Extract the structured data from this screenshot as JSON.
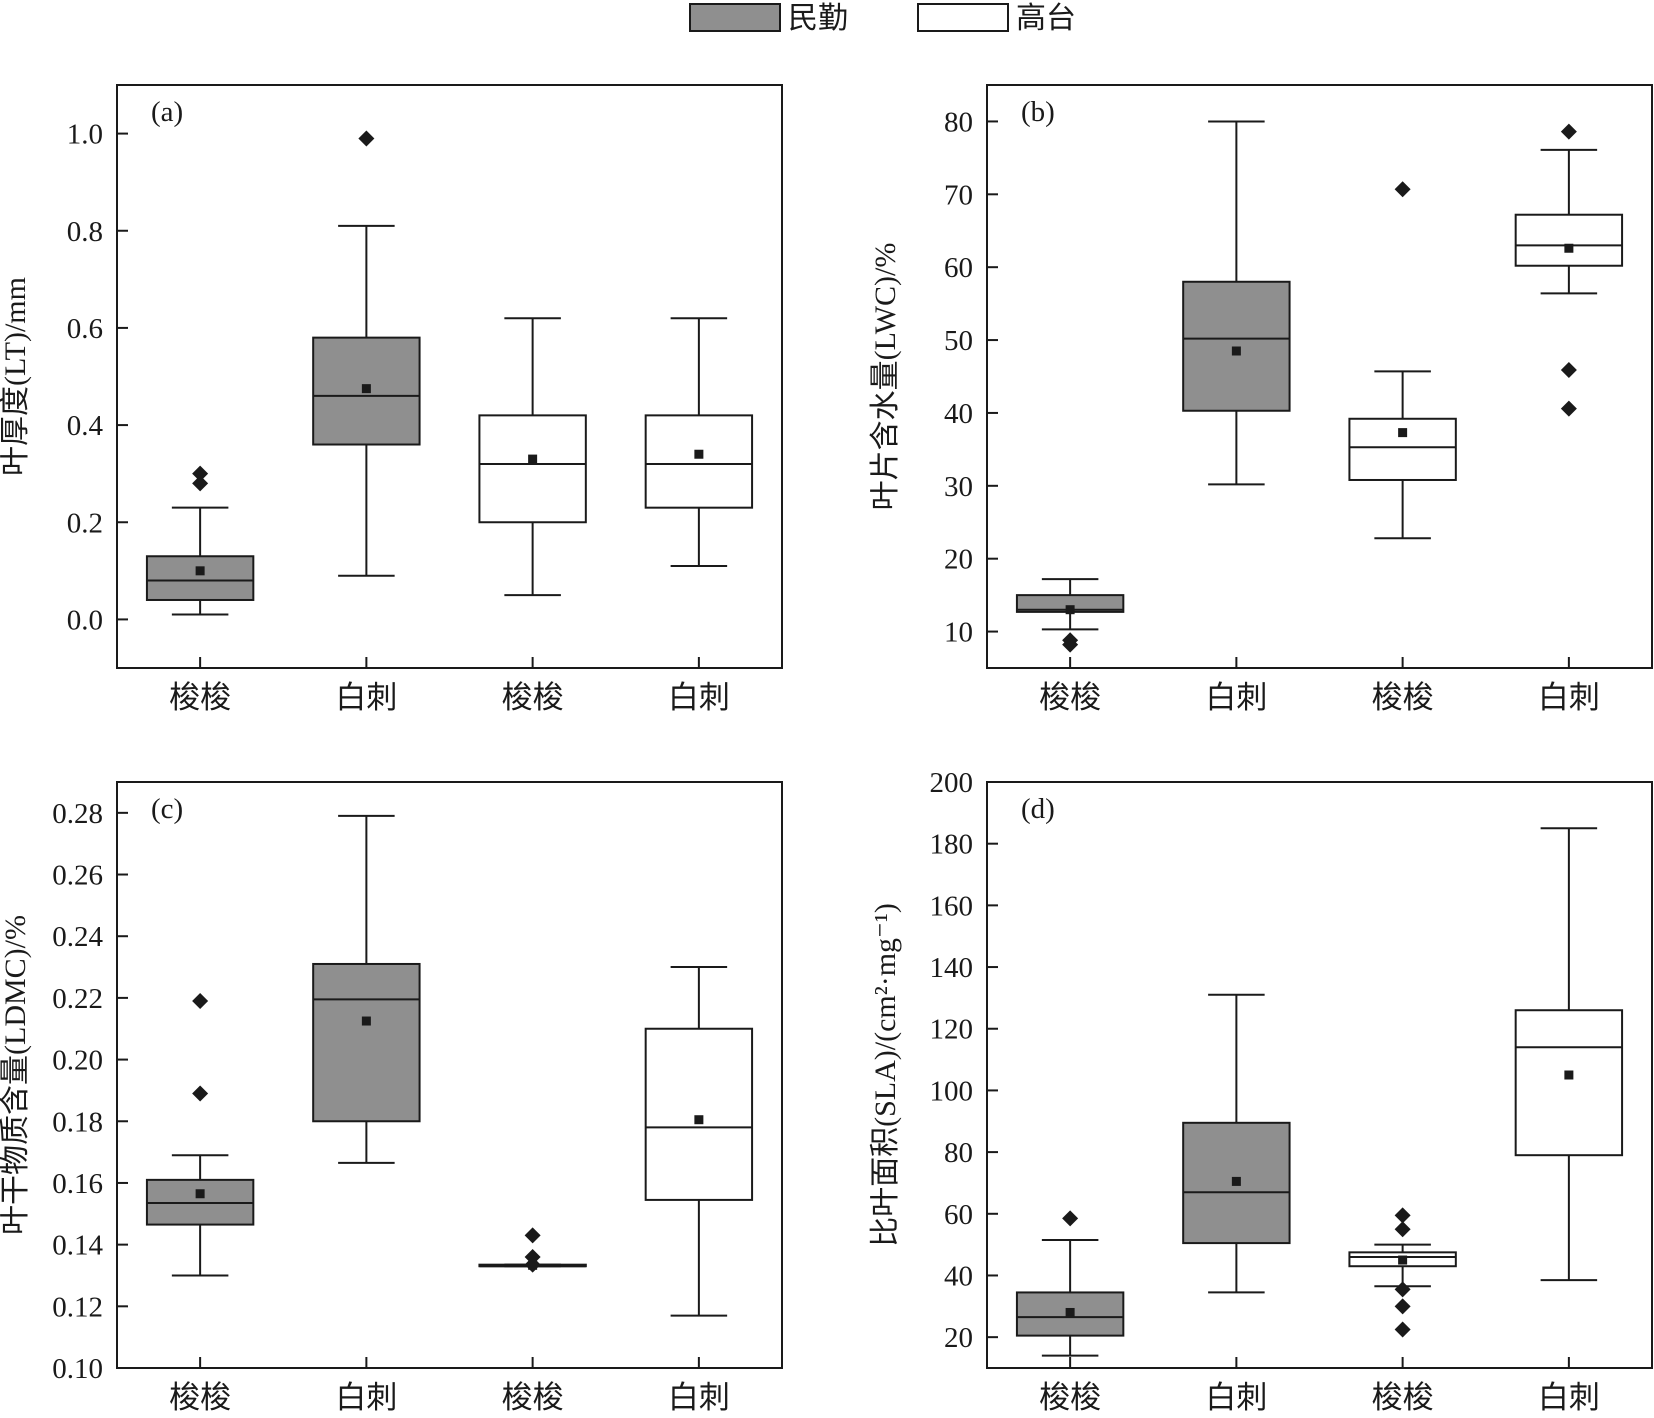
{
  "legend": {
    "placement": "top-center",
    "entries": [
      {
        "label": "民勤",
        "color": "#8f8f8f"
      },
      {
        "label": "高台",
        "color": "#ffffff"
      }
    ]
  },
  "chart_data": [
    {
      "type": "box",
      "panel_label": "(a)",
      "ylabel": "叶厚度(LT)/mm",
      "ylim": [
        -0.1,
        1.1
      ],
      "yticks": [
        0.0,
        0.2,
        0.4,
        0.6,
        0.8,
        1.0
      ],
      "ytick_labels": [
        "0.0",
        "0.2",
        "0.4",
        "0.6",
        "0.8",
        "1.0"
      ],
      "categories": [
        "梭梭",
        "白刺",
        "梭梭",
        "白刺"
      ],
      "boxes": [
        {
          "group": "民勤",
          "whisker_low": 0.01,
          "q1": 0.04,
          "median": 0.08,
          "q3": 0.13,
          "whisker_high": 0.23,
          "mean": 0.1,
          "outliers": [
            0.28,
            0.3
          ]
        },
        {
          "group": "民勤",
          "whisker_low": 0.09,
          "q1": 0.36,
          "median": 0.46,
          "q3": 0.58,
          "whisker_high": 0.81,
          "mean": 0.475,
          "outliers": [
            0.99
          ]
        },
        {
          "group": "高台",
          "whisker_low": 0.05,
          "q1": 0.2,
          "median": 0.32,
          "q3": 0.42,
          "whisker_high": 0.62,
          "mean": 0.33,
          "outliers": []
        },
        {
          "group": "高台",
          "whisker_low": 0.11,
          "q1": 0.23,
          "median": 0.32,
          "q3": 0.42,
          "whisker_high": 0.62,
          "mean": 0.34,
          "outliers": []
        }
      ]
    },
    {
      "type": "box",
      "panel_label": "(b)",
      "ylabel": "叶片含水量(LWC)/%",
      "ylim": [
        5,
        85
      ],
      "yticks": [
        10,
        20,
        30,
        40,
        50,
        60,
        70,
        80
      ],
      "ytick_labels": [
        "10",
        "20",
        "30",
        "40",
        "50",
        "60",
        "70",
        "80"
      ],
      "categories": [
        "梭梭",
        "白刺",
        "梭梭",
        "白刺"
      ],
      "boxes": [
        {
          "group": "民勤",
          "whisker_low": 10.3,
          "q1": 12.7,
          "median": 13.0,
          "q3": 15.0,
          "whisker_high": 17.2,
          "mean": 13.0,
          "outliers": [
            8.2,
            8.8
          ]
        },
        {
          "group": "民勤",
          "whisker_low": 30.2,
          "q1": 40.3,
          "median": 50.2,
          "q3": 58.0,
          "whisker_high": 80.0,
          "mean": 48.5,
          "outliers": []
        },
        {
          "group": "高台",
          "whisker_low": 22.8,
          "q1": 30.8,
          "median": 35.3,
          "q3": 39.2,
          "whisker_high": 45.7,
          "mean": 37.3,
          "outliers": [
            70.7
          ]
        },
        {
          "group": "高台",
          "whisker_low": 56.4,
          "q1": 60.2,
          "median": 63.0,
          "q3": 67.2,
          "whisker_high": 76.1,
          "mean": 62.6,
          "outliers": [
            40.6,
            45.9,
            78.6
          ]
        }
      ]
    },
    {
      "type": "box",
      "panel_label": "(c)",
      "ylabel": "叶干物质含量(LDMC)/%",
      "ylim": [
        0.1,
        0.29
      ],
      "yticks": [
        0.1,
        0.12,
        0.14,
        0.16,
        0.18,
        0.2,
        0.22,
        0.24,
        0.26,
        0.28
      ],
      "ytick_labels": [
        "0.10",
        "0.12",
        "0.14",
        "0.16",
        "0.18",
        "0.20",
        "0.22",
        "0.24",
        "0.26",
        "0.28"
      ],
      "categories": [
        "梭梭",
        "白刺",
        "梭梭",
        "白刺"
      ],
      "boxes": [
        {
          "group": "民勤",
          "whisker_low": 0.13,
          "q1": 0.1465,
          "median": 0.1535,
          "q3": 0.161,
          "whisker_high": 0.169,
          "mean": 0.1565,
          "outliers": [
            0.189,
            0.219
          ]
        },
        {
          "group": "民勤",
          "whisker_low": 0.1665,
          "q1": 0.18,
          "median": 0.2195,
          "q3": 0.231,
          "whisker_high": 0.279,
          "mean": 0.2125,
          "outliers": []
        },
        {
          "group": "高台",
          "whisker_low": 0.133,
          "q1": 0.133,
          "median": 0.133,
          "q3": 0.1335,
          "whisker_high": 0.1335,
          "mean": 0.1333,
          "outliers": [
            0.1335,
            0.136,
            0.143
          ]
        },
        {
          "group": "高台",
          "whisker_low": 0.117,
          "q1": 0.1545,
          "median": 0.178,
          "q3": 0.21,
          "whisker_high": 0.23,
          "mean": 0.1805,
          "outliers": []
        }
      ]
    },
    {
      "type": "box",
      "panel_label": "(d)",
      "ylabel": "比叶面积(SLA)/(cm²·mg⁻¹)",
      "ylim": [
        10,
        200
      ],
      "yticks": [
        20,
        40,
        60,
        80,
        100,
        120,
        140,
        160,
        180,
        200
      ],
      "ytick_labels": [
        "20",
        "40",
        "60",
        "80",
        "100",
        "120",
        "140",
        "160",
        "180",
        "200"
      ],
      "categories": [
        "梭梭",
        "白刺",
        "梭梭",
        "白刺"
      ],
      "boxes": [
        {
          "group": "民勤",
          "whisker_low": 14,
          "q1": 20.5,
          "median": 26.5,
          "q3": 34.5,
          "whisker_high": 51.5,
          "mean": 28,
          "outliers": [
            58.5
          ]
        },
        {
          "group": "民勤",
          "whisker_low": 34.5,
          "q1": 50.5,
          "median": 67,
          "q3": 89.5,
          "whisker_high": 131,
          "mean": 70.5,
          "outliers": []
        },
        {
          "group": "高台",
          "whisker_low": 36.5,
          "q1": 43,
          "median": 46,
          "q3": 47.5,
          "whisker_high": 50,
          "mean": 45,
          "outliers": [
            22.5,
            30,
            35.5,
            55,
            59.5
          ]
        },
        {
          "group": "高台",
          "whisker_low": 38.5,
          "q1": 79,
          "median": 114,
          "q3": 126,
          "whisker_high": 185,
          "mean": 105,
          "outliers": []
        }
      ]
    }
  ]
}
